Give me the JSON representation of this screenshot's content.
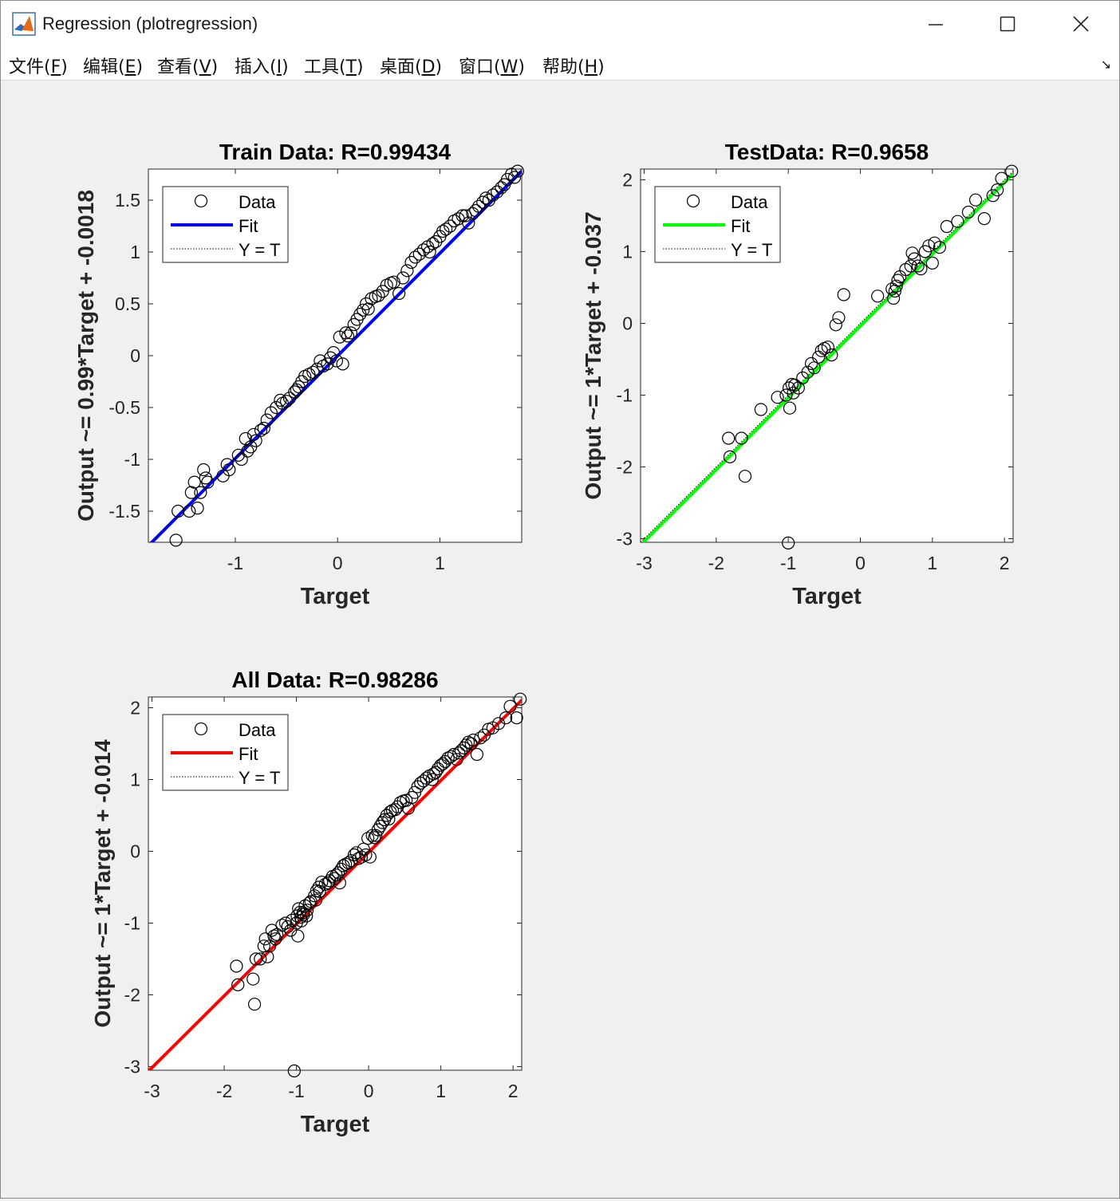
{
  "window": {
    "title": "Regression (plotregression)"
  },
  "menu": [
    {
      "text": "文件(",
      "key": "F",
      "close": ")"
    },
    {
      "text": "编辑(",
      "key": "E",
      "close": ")"
    },
    {
      "text": "查看(",
      "key": "V",
      "close": ")"
    },
    {
      "text": "插入(",
      "key": "I",
      "close": ")"
    },
    {
      "text": "工具(",
      "key": "T",
      "close": ")"
    },
    {
      "text": "桌面(",
      "key": "D",
      "close": ")"
    },
    {
      "text": "窗口(",
      "key": "W",
      "close": ")"
    },
    {
      "text": "帮助(",
      "key": "H",
      "close": ")"
    }
  ],
  "colors": {
    "train_fit": "#0000ff",
    "test_fit": "#00ff00",
    "all_fit": "#ff0000",
    "marker": "#000000"
  },
  "chart_data": [
    {
      "type": "scatter",
      "title": "Train Data: R=0.99434",
      "xlabel": "Target",
      "ylabel": "Output ~= 0.99*Target + -0.0018",
      "xlim": [
        -1.85,
        1.8
      ],
      "ylim": [
        -1.8,
        1.8
      ],
      "xticks": [
        -1,
        0,
        1
      ],
      "yticks": [
        -1.5,
        -1,
        -0.5,
        0,
        0.5,
        1,
        1.5
      ],
      "fit": {
        "slope": 0.99,
        "intercept": -0.0018
      },
      "legend": {
        "position": "top-left",
        "entries": [
          "Data",
          "Fit",
          "Y = T"
        ]
      },
      "x": [
        -1.58,
        -1.56,
        -1.45,
        -1.43,
        -1.4,
        -1.37,
        -1.34,
        -1.31,
        -1.29,
        -1.27,
        -1.12,
        -1.08,
        -1.06,
        -0.97,
        -0.94,
        -0.9,
        -0.88,
        -0.85,
        -0.82,
        -0.8,
        -0.75,
        -0.72,
        -0.69,
        -0.65,
        -0.6,
        -0.56,
        -0.54,
        -0.5,
        -0.47,
        -0.42,
        -0.4,
        -0.38,
        -0.35,
        -0.32,
        -0.28,
        -0.24,
        -0.2,
        -0.17,
        -0.14,
        -0.1,
        -0.07,
        -0.04,
        -0.01,
        0.02,
        0.05,
        0.08,
        0.1,
        0.13,
        0.16,
        0.19,
        0.22,
        0.25,
        0.28,
        0.3,
        0.33,
        0.37,
        0.4,
        0.44,
        0.48,
        0.52,
        0.55,
        0.6,
        0.64,
        0.68,
        0.72,
        0.76,
        0.8,
        0.84,
        0.88,
        0.9,
        0.93,
        0.96,
        1.0,
        1.03,
        1.06,
        1.1,
        1.14,
        1.18,
        1.22,
        1.25,
        1.28,
        1.32,
        1.35,
        1.38,
        1.42,
        1.45,
        1.48,
        1.52,
        1.56,
        1.6,
        1.63,
        1.66,
        1.7,
        1.73,
        1.76
      ],
      "y": [
        -1.78,
        -1.5,
        -1.5,
        -1.32,
        -1.22,
        -1.47,
        -1.32,
        -1.1,
        -1.18,
        -1.22,
        -1.16,
        -1.05,
        -1.1,
        -0.96,
        -1.0,
        -0.8,
        -0.92,
        -0.88,
        -0.76,
        -0.82,
        -0.72,
        -0.7,
        -0.62,
        -0.55,
        -0.5,
        -0.43,
        -0.46,
        -0.44,
        -0.41,
        -0.35,
        -0.33,
        -0.3,
        -0.25,
        -0.2,
        -0.18,
        -0.16,
        -0.13,
        -0.05,
        -0.1,
        -0.08,
        -0.02,
        0.03,
        -0.05,
        0.18,
        -0.08,
        0.22,
        0.19,
        0.22,
        0.3,
        0.35,
        0.4,
        0.44,
        0.5,
        0.45,
        0.55,
        0.57,
        0.58,
        0.62,
        0.68,
        0.7,
        0.71,
        0.6,
        0.75,
        0.82,
        0.9,
        0.95,
        0.98,
        1.02,
        1.05,
        1.0,
        1.08,
        1.1,
        1.15,
        1.2,
        1.22,
        1.25,
        1.3,
        1.32,
        1.35,
        1.35,
        1.28,
        1.37,
        1.4,
        1.44,
        1.48,
        1.52,
        1.5,
        1.55,
        1.58,
        1.62,
        1.65,
        1.7,
        1.75,
        1.72,
        1.78
      ]
    },
    {
      "type": "scatter",
      "title": "TestData: R=0.9658",
      "xlabel": "Target",
      "ylabel": "Output ~= 1*Target + -0.037",
      "xlim": [
        -3.05,
        2.12
      ],
      "ylim": [
        -3.05,
        2.15
      ],
      "xticks": [
        -3,
        -2,
        -1,
        0,
        1,
        2
      ],
      "yticks": [
        -3,
        -2,
        -1,
        0,
        1,
        2
      ],
      "fit": {
        "slope": 1,
        "intercept": -0.037
      },
      "legend": {
        "position": "top-left",
        "entries": [
          "Data",
          "Fit",
          "Y = T"
        ]
      },
      "x": [
        -1.83,
        -1.81,
        -1.65,
        -1.6,
        -1.38,
        -1.15,
        -1.03,
        -1.0,
        -0.99,
        -0.98,
        -0.95,
        -0.93,
        -0.91,
        -0.86,
        -0.8,
        -0.73,
        -0.68,
        -0.64,
        -0.58,
        -0.54,
        -0.5,
        -0.45,
        -0.4,
        -0.34,
        -0.3,
        -0.23,
        0.24,
        0.44,
        0.46,
        0.48,
        0.5,
        0.52,
        0.55,
        0.63,
        0.7,
        0.72,
        0.75,
        0.8,
        0.84,
        0.9,
        0.95,
        1.0,
        1.03,
        1.1,
        1.2,
        1.35,
        1.5,
        1.6,
        1.72,
        1.84,
        1.9,
        1.96,
        2.1
      ],
      "y": [
        -1.6,
        -1.86,
        -1.6,
        -2.13,
        -1.2,
        -1.03,
        -1.0,
        -3.06,
        -0.9,
        -1.18,
        -0.85,
        -0.97,
        -0.86,
        -0.9,
        -0.76,
        -0.68,
        -0.56,
        -0.62,
        -0.47,
        -0.38,
        -0.35,
        -0.33,
        -0.44,
        -0.02,
        0.08,
        0.4,
        0.38,
        0.48,
        0.35,
        0.45,
        0.52,
        0.6,
        0.65,
        0.75,
        0.8,
        0.98,
        0.9,
        0.8,
        0.76,
        1.0,
        1.08,
        0.84,
        1.12,
        1.06,
        1.35,
        1.42,
        1.55,
        1.72,
        1.46,
        1.78,
        1.86,
        2.02,
        2.12
      ]
    },
    {
      "type": "scatter",
      "title": "All Data: R=0.98286",
      "xlabel": "Target",
      "ylabel": "Output ~= 1*Target + -0.014",
      "xlim": [
        -3.05,
        2.12
      ],
      "ylim": [
        -3.05,
        2.15
      ],
      "xticks": [
        -3,
        -2,
        -1,
        0,
        1,
        2
      ],
      "yticks": [
        -3,
        -2,
        -1,
        0,
        1,
        2
      ],
      "fit": {
        "slope": 1,
        "intercept": -0.014
      },
      "legend": {
        "position": "top-left",
        "entries": [
          "Data",
          "Fit",
          "Y = T"
        ]
      },
      "x": [
        -1.83,
        -1.81,
        -1.6,
        -1.58,
        -1.56,
        -1.5,
        -1.45,
        -1.43,
        -1.4,
        -1.37,
        -1.34,
        -1.31,
        -1.29,
        -1.27,
        -1.2,
        -1.15,
        -1.12,
        -1.08,
        -1.06,
        -1.03,
        -1.0,
        -0.99,
        -0.98,
        -0.97,
        -0.95,
        -0.94,
        -0.93,
        -0.91,
        -0.9,
        -0.88,
        -0.86,
        -0.85,
        -0.82,
        -0.8,
        -0.75,
        -0.73,
        -0.72,
        -0.69,
        -0.68,
        -0.65,
        -0.6,
        -0.56,
        -0.54,
        -0.5,
        -0.47,
        -0.45,
        -0.42,
        -0.4,
        -0.38,
        -0.35,
        -0.32,
        -0.28,
        -0.24,
        -0.2,
        -0.17,
        -0.14,
        -0.1,
        -0.07,
        -0.04,
        -0.01,
        0.02,
        0.05,
        0.08,
        0.1,
        0.13,
        0.16,
        0.19,
        0.22,
        0.25,
        0.28,
        0.3,
        0.33,
        0.37,
        0.4,
        0.44,
        0.48,
        0.52,
        0.55,
        0.6,
        0.64,
        0.68,
        0.72,
        0.76,
        0.8,
        0.84,
        0.88,
        0.9,
        0.93,
        0.96,
        1.0,
        1.03,
        1.06,
        1.1,
        1.14,
        1.18,
        1.22,
        1.25,
        1.28,
        1.32,
        1.35,
        1.38,
        1.42,
        1.45,
        1.5,
        1.55,
        1.6,
        1.66,
        1.72,
        1.8,
        1.9,
        1.96,
        2.05,
        2.1
      ],
      "y": [
        -1.6,
        -1.86,
        -1.78,
        -2.13,
        -1.5,
        -1.5,
        -1.32,
        -1.22,
        -1.47,
        -1.32,
        -1.1,
        -1.18,
        -1.22,
        -1.16,
        -1.03,
        -1.0,
        -1.05,
        -1.1,
        -0.96,
        -3.06,
        -1.0,
        -0.9,
        -1.18,
        -0.8,
        -0.85,
        -0.92,
        -0.97,
        -0.86,
        -0.88,
        -0.76,
        -0.9,
        -0.82,
        -0.72,
        -0.7,
        -0.62,
        -0.68,
        -0.55,
        -0.5,
        -0.56,
        -0.43,
        -0.46,
        -0.44,
        -0.41,
        -0.35,
        -0.38,
        -0.33,
        -0.3,
        -0.44,
        -0.25,
        -0.2,
        -0.18,
        -0.16,
        -0.13,
        -0.05,
        -0.02,
        -0.1,
        -0.08,
        0.03,
        -0.05,
        0.18,
        -0.08,
        0.22,
        0.19,
        0.22,
        0.3,
        0.35,
        0.4,
        0.44,
        0.5,
        0.45,
        0.55,
        0.57,
        0.58,
        0.62,
        0.68,
        0.7,
        0.71,
        0.6,
        0.75,
        0.82,
        0.9,
        0.95,
        0.98,
        1.02,
        1.05,
        1.0,
        1.08,
        1.1,
        1.15,
        1.2,
        1.22,
        1.25,
        1.3,
        1.32,
        1.35,
        1.28,
        1.37,
        1.4,
        1.44,
        1.48,
        1.52,
        1.5,
        1.55,
        1.35,
        1.58,
        1.62,
        1.7,
        1.72,
        1.78,
        1.86,
        2.02,
        1.86,
        2.12
      ]
    }
  ]
}
